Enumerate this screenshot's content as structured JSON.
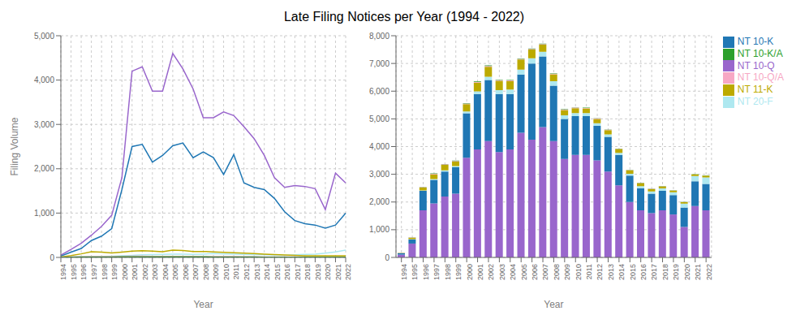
{
  "chart_data": [
    {
      "type": "line",
      "title": "Late Filing Notices per Year (1994 - 2022)",
      "x_label": "Year",
      "y_label": "Filing Volume",
      "categories": [
        "1994",
        "1995",
        "1996",
        "1997",
        "1998",
        "1999",
        "2000",
        "2001",
        "2002",
        "2003",
        "2004",
        "2005",
        "2006",
        "2007",
        "2008",
        "2009",
        "2010",
        "2011",
        "2012",
        "2013",
        "2014",
        "2015",
        "2016",
        "2017",
        "2018",
        "2019",
        "2020",
        "2021",
        "2022"
      ],
      "series": [
        {
          "name": "NT 10-Q",
          "color": "#9966cc",
          "values": [
            50,
            180,
            320,
            500,
            700,
            950,
            1800,
            4200,
            4300,
            3750,
            3750,
            4600,
            4250,
            3800,
            3150,
            3150,
            3280,
            3200,
            2950,
            2680,
            2300,
            1800,
            1580,
            1620,
            1600,
            1550,
            1080,
            1900,
            1680
          ]
        },
        {
          "name": "NT 10-K",
          "color": "#1f77b4",
          "values": [
            30,
            120,
            200,
            380,
            480,
            650,
            1530,
            2500,
            2550,
            2150,
            2300,
            2520,
            2580,
            2250,
            2380,
            2250,
            1870,
            2320,
            1680,
            1580,
            1530,
            1330,
            1030,
            830,
            760,
            730,
            660,
            730,
            1000
          ]
        },
        {
          "name": "NT 20-F",
          "color": "#aee8f0",
          "values": [
            5,
            10,
            15,
            18,
            22,
            28,
            38,
            48,
            58,
            62,
            68,
            75,
            72,
            68,
            75,
            85,
            78,
            72,
            68,
            62,
            58,
            52,
            48,
            58,
            68,
            75,
            95,
            125,
            165
          ]
        },
        {
          "name": "NT 11-K",
          "color": "#bcaa00",
          "values": [
            10,
            40,
            80,
            130,
            120,
            100,
            120,
            140,
            150,
            140,
            130,
            165,
            155,
            135,
            135,
            125,
            115,
            105,
            95,
            85,
            75,
            65,
            55,
            45,
            38,
            38,
            38,
            38,
            38
          ]
        },
        {
          "name": "NT 10-Q/A",
          "color": "#f7a8c4",
          "values": [
            5,
            10,
            15,
            18,
            18,
            18,
            22,
            28,
            28,
            22,
            22,
            22,
            22,
            22,
            18,
            18,
            18,
            18,
            13,
            13,
            8,
            8,
            8,
            8,
            6,
            6,
            4,
            4,
            4
          ]
        },
        {
          "name": "NT 10-K/A",
          "color": "#2ca02c",
          "values": [
            2,
            5,
            8,
            8,
            10,
            10,
            13,
            16,
            16,
            14,
            14,
            14,
            13,
            12,
            12,
            11,
            10,
            10,
            8,
            8,
            6,
            6,
            6,
            5,
            4,
            4,
            4,
            4,
            4
          ]
        }
      ],
      "ylim": [
        0,
        5000
      ],
      "yticks": [
        0,
        {
          "value": 1000,
          "label": "1,000"
        },
        {
          "value": 2000,
          "label": "2,000"
        },
        {
          "value": 3000,
          "label": "3,000"
        },
        {
          "value": 4000,
          "label": "4,000"
        },
        {
          "value": 5000,
          "label": "5,000"
        }
      ],
      "grid": true
    },
    {
      "type": "bar",
      "stacked": true,
      "x_label": "Year",
      "categories": [
        "1994",
        "1995",
        "1996",
        "1997",
        "1998",
        "1999",
        "2000",
        "2001",
        "2002",
        "2003",
        "2004",
        "2005",
        "2006",
        "2007",
        "2008",
        "2009",
        "2010",
        "2011",
        "2012",
        "2013",
        "2014",
        "2015",
        "2016",
        "2017",
        "2018",
        "2019",
        "2020",
        "2021",
        "2022"
      ],
      "series": [
        {
          "name": "NT 10-Q",
          "color": "#9966cc",
          "values": [
            100,
            500,
            1700,
            1950,
            2200,
            2300,
            3600,
            3900,
            4200,
            3800,
            3900,
            4500,
            4250,
            4700,
            4200,
            3550,
            3700,
            3700,
            3500,
            3100,
            2600,
            2000,
            1700,
            1600,
            1700,
            1550,
            1100,
            1850,
            1700
          ]
        },
        {
          "name": "NT 10-K",
          "color": "#1f77b4",
          "values": [
            50,
            150,
            700,
            850,
            900,
            950,
            1600,
            2000,
            2200,
            2100,
            2000,
            2100,
            2750,
            2550,
            2000,
            1450,
            1400,
            1400,
            1250,
            1250,
            1100,
            950,
            800,
            700,
            700,
            700,
            700,
            900,
            950
          ]
        },
        {
          "name": "NT 20-F",
          "color": "#aee8f0",
          "values": [
            5,
            10,
            20,
            30,
            40,
            50,
            70,
            90,
            120,
            140,
            160,
            180,
            190,
            170,
            160,
            130,
            110,
            110,
            90,
            90,
            75,
            70,
            70,
            80,
            90,
            100,
            145,
            185,
            240
          ]
        },
        {
          "name": "NT 11-K",
          "color": "#bcaa00",
          "values": [
            10,
            50,
            100,
            170,
            200,
            160,
            260,
            320,
            360,
            330,
            300,
            360,
            310,
            255,
            250,
            190,
            175,
            165,
            160,
            150,
            135,
            120,
            108,
            85,
            72,
            60,
            50,
            60,
            60
          ]
        },
        {
          "name": "NT 10-Q/A",
          "color": "#f7a8c4",
          "values": [
            5,
            10,
            15,
            20,
            20,
            20,
            25,
            30,
            30,
            25,
            25,
            25,
            25,
            25,
            20,
            20,
            20,
            20,
            15,
            15,
            10,
            10,
            10,
            10,
            8,
            8,
            5,
            5,
            5
          ]
        },
        {
          "name": "NT 10-K/A",
          "color": "#2ca02c",
          "values": [
            2,
            5,
            8,
            10,
            12,
            12,
            15,
            18,
            18,
            16,
            16,
            16,
            15,
            14,
            14,
            13,
            12,
            12,
            10,
            10,
            8,
            8,
            8,
            7,
            6,
            5,
            5,
            5,
            5
          ]
        }
      ],
      "ylim": [
        0,
        8000
      ],
      "yticks": [
        0,
        {
          "value": 1000,
          "label": "1,000"
        },
        {
          "value": 2000,
          "label": "2,000"
        },
        {
          "value": 3000,
          "label": "3,000"
        },
        {
          "value": 4000,
          "label": "4,000"
        },
        {
          "value": 5000,
          "label": "5,000"
        },
        {
          "value": 6000,
          "label": "6,000"
        },
        {
          "value": 7000,
          "label": "7,000"
        },
        {
          "value": 8000,
          "label": "8,000"
        }
      ],
      "grid": true,
      "legend": "right"
    }
  ]
}
